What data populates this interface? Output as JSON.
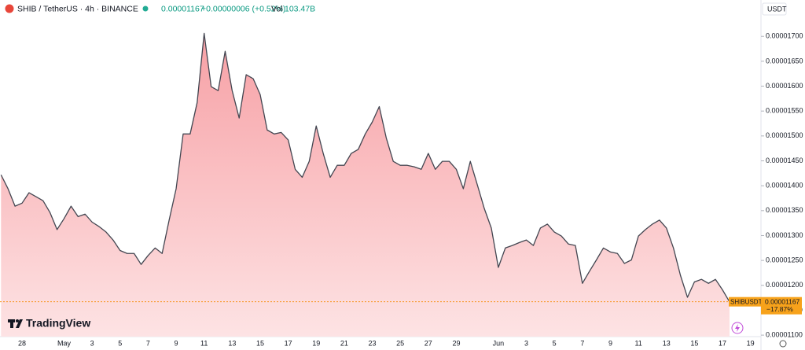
{
  "header": {
    "symbol": "SHIB / TetherUS · 4h · BINANCE",
    "price": "0.00001167",
    "change": "+0.00000006 (+0.52%)",
    "vol_label": "Vol",
    "vol": "103.47B",
    "currency": "USDT",
    "logo": "TradingView"
  },
  "price_tag": {
    "symbol": "SHIBUSDT",
    "value": "0.00001167",
    "change": "−17.87%"
  },
  "chart_data": {
    "type": "area",
    "color": "#434651",
    "fill": "#f7a6aa",
    "grid": false,
    "categories": [
      null,
      null,
      null,
      "28",
      null,
      null,
      null,
      null,
      null,
      "May",
      null,
      null,
      null,
      "3",
      null,
      null,
      null,
      "5",
      null,
      null,
      null,
      "7",
      null,
      null,
      null,
      "9",
      null,
      null,
      null,
      "11",
      null,
      null,
      null,
      "13",
      null,
      null,
      null,
      "15",
      null,
      null,
      null,
      "17",
      null,
      null,
      null,
      "19",
      null,
      null,
      null,
      "21",
      null,
      null,
      null,
      "23",
      null,
      null,
      null,
      "25",
      null,
      null,
      null,
      "27",
      null,
      null,
      null,
      "29",
      null,
      null,
      null,
      null,
      null,
      "Jun",
      null,
      null,
      null,
      "3",
      null,
      null,
      null,
      "5",
      null,
      null,
      null,
      "7",
      null,
      null,
      null,
      "9",
      null,
      null,
      null,
      "11",
      null,
      null,
      null,
      "13",
      null,
      null,
      null,
      "15",
      null,
      null,
      null,
      "17",
      null,
      null,
      null,
      "19"
    ],
    "values": [
      1.422e-05,
      1.394e-05,
      1.359e-05,
      1.365e-05,
      1.386e-05,
      1.378e-05,
      1.37e-05,
      1.346e-05,
      1.312e-05,
      1.334e-05,
      1.359e-05,
      1.338e-05,
      1.343e-05,
      1.327e-05,
      1.318e-05,
      1.307e-05,
      1.291e-05,
      1.27e-05,
      1.264e-05,
      1.264e-05,
      1.242e-05,
      1.26e-05,
      1.275e-05,
      1.264e-05,
      1.331e-05,
      1.394e-05,
      1.504e-05,
      1.504e-05,
      1.567e-05,
      1.706e-05,
      1.599e-05,
      1.591e-05,
      1.67e-05,
      1.591e-05,
      1.536e-05,
      1.623e-05,
      1.615e-05,
      1.583e-05,
      1.512e-05,
      1.504e-05,
      1.507e-05,
      1.492e-05,
      1.433e-05,
      1.417e-05,
      1.449e-05,
      1.52e-05,
      1.465e-05,
      1.417e-05,
      1.441e-05,
      1.441e-05,
      1.465e-05,
      1.473e-05,
      1.504e-05,
      1.528e-05,
      1.559e-05,
      1.496e-05,
      1.449e-05,
      1.441e-05,
      1.441e-05,
      1.438e-05,
      1.433e-05,
      1.465e-05,
      1.433e-05,
      1.449e-05,
      1.449e-05,
      1.433e-05,
      1.394e-05,
      1.449e-05,
      1.402e-05,
      1.354e-05,
      1.315e-05,
      1.236e-05,
      1.275e-05,
      1.28e-05,
      1.286e-05,
      1.291e-05,
      1.28e-05,
      1.315e-05,
      1.323e-05,
      1.307e-05,
      1.299e-05,
      1.283e-05,
      1.28e-05,
      1.204e-05,
      1.228e-05,
      1.251e-05,
      1.275e-05,
      1.267e-05,
      1.264e-05,
      1.244e-05,
      1.251e-05,
      1.299e-05,
      1.312e-05,
      1.323e-05,
      1.331e-05,
      1.315e-05,
      1.275e-05,
      1.22e-05,
      1.176e-05,
      1.207e-05,
      1.212e-05,
      1.204e-05,
      1.212e-05,
      1.191e-05,
      1.167e-05,
      null,
      null,
      null
    ],
    "ylim": [
      1.097e-05,
      1.773e-05
    ],
    "yticks": [
      {
        "value": 1.1e-05,
        "label": "0.00001100"
      },
      {
        "value": 1.15e-05,
        "label": "0.00001150"
      },
      {
        "value": 1.2e-05,
        "label": "0.00001200"
      },
      {
        "value": 1.25e-05,
        "label": "0.00001250"
      },
      {
        "value": 1.3e-05,
        "label": "0.00001300"
      },
      {
        "value": 1.35e-05,
        "label": "0.00001350"
      },
      {
        "value": 1.4e-05,
        "label": "0.00001400"
      },
      {
        "value": 1.45e-05,
        "label": "0.00001450"
      },
      {
        "value": 1.5e-05,
        "label": "0.00001500"
      },
      {
        "value": 1.55e-05,
        "label": "0.00001550"
      },
      {
        "value": 1.6e-05,
        "label": "0.00001600"
      },
      {
        "value": 1.65e-05,
        "label": "0.00001650"
      },
      {
        "value": 1.7e-05,
        "label": "0.00001700"
      }
    ]
  }
}
